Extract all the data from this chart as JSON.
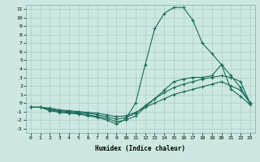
{
  "xlabel": "Humidex (Indice chaleur)",
  "ylabel": "",
  "bg_color": "#cce8e0",
  "line_color": "#1a6b5a",
  "grid_color": "#aacfc8",
  "xlim": [
    -0.5,
    23.5
  ],
  "ylim": [
    -3.5,
    11.5
  ],
  "xticks": [
    0,
    1,
    2,
    3,
    4,
    5,
    6,
    7,
    8,
    9,
    10,
    11,
    12,
    13,
    14,
    15,
    16,
    17,
    18,
    19,
    20,
    21,
    22,
    23
  ],
  "yticks": [
    -3,
    -2,
    -1,
    0,
    1,
    2,
    3,
    4,
    5,
    6,
    7,
    8,
    9,
    10,
    11
  ],
  "line1_x": [
    0,
    1,
    2,
    3,
    4,
    5,
    6,
    7,
    8,
    9,
    10,
    11,
    12,
    13,
    14,
    15,
    16,
    17,
    18,
    19,
    20,
    21,
    22,
    23
  ],
  "line1_y": [
    -0.5,
    -0.5,
    -0.9,
    -1.1,
    -1.2,
    -1.3,
    -1.5,
    -1.7,
    -2.0,
    -2.5,
    -1.8,
    0.0,
    4.5,
    8.7,
    10.5,
    11.2,
    11.2,
    9.7,
    7.0,
    5.8,
    4.5,
    1.6,
    0.8,
    -0.2
  ],
  "line2_x": [
    0,
    1,
    2,
    3,
    4,
    5,
    6,
    7,
    8,
    9,
    10,
    11,
    12,
    13,
    14,
    15,
    16,
    17,
    18,
    19,
    20,
    21,
    22,
    23
  ],
  "line2_y": [
    -0.5,
    -0.5,
    -0.8,
    -1.0,
    -1.1,
    -1.2,
    -1.4,
    -1.6,
    -1.8,
    -2.2,
    -2.0,
    -1.5,
    -0.5,
    0.5,
    1.5,
    2.5,
    2.8,
    3.0,
    3.0,
    3.2,
    4.5,
    3.2,
    1.8,
    0.0
  ],
  "line3_x": [
    0,
    1,
    2,
    3,
    4,
    5,
    6,
    7,
    8,
    9,
    10,
    11,
    12,
    13,
    14,
    15,
    16,
    17,
    18,
    19,
    20,
    21,
    22,
    23
  ],
  "line3_y": [
    -0.5,
    -0.5,
    -0.7,
    -0.9,
    -1.0,
    -1.1,
    -1.2,
    -1.4,
    -1.6,
    -1.9,
    -1.7,
    -1.2,
    -0.3,
    0.5,
    1.2,
    1.8,
    2.2,
    2.5,
    2.8,
    3.0,
    3.2,
    3.0,
    2.5,
    0.0
  ],
  "line4_x": [
    0,
    1,
    2,
    3,
    4,
    5,
    6,
    7,
    8,
    9,
    10,
    11,
    12,
    13,
    14,
    15,
    16,
    17,
    18,
    19,
    20,
    21,
    22,
    23
  ],
  "line4_y": [
    -0.5,
    -0.5,
    -0.6,
    -0.8,
    -0.9,
    -1.0,
    -1.1,
    -1.2,
    -1.4,
    -1.6,
    -1.5,
    -1.1,
    -0.5,
    0.0,
    0.5,
    1.0,
    1.3,
    1.6,
    1.9,
    2.2,
    2.5,
    2.0,
    1.5,
    0.0
  ]
}
